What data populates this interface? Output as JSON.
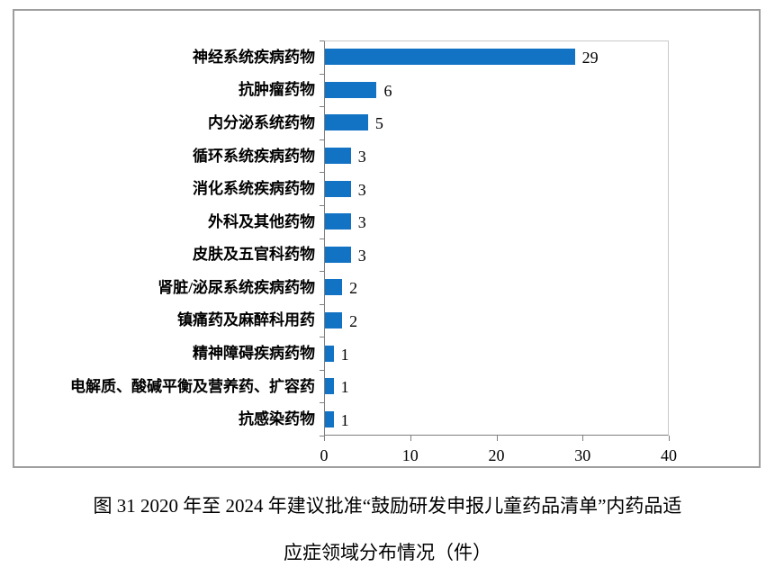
{
  "figure": {
    "caption_line1": "图 31  2020 年至 2024 年建议批准“鼓励研发申报儿童药品清单”内药品适",
    "caption_line2": "应症领域分布情况（件）"
  },
  "colors": {
    "bar": "#1273C5",
    "frame_border": "#9E9E9E",
    "axis": "#7F7F7F",
    "plot_border": "#C9C9C9",
    "text": "#000000"
  },
  "chart_data": {
    "type": "bar",
    "orientation": "horizontal",
    "title": "",
    "xlabel": "",
    "ylabel": "",
    "categories": [
      "神经系统疾病药物",
      "抗肿瘤药物",
      "内分泌系统药物",
      "循环系统疾病药物",
      "消化系统疾病药物",
      "外科及其他药物",
      "皮肤及五官科药物",
      "肾脏/泌尿系统疾病药物",
      "镇痛药及麻醉科用药",
      "精神障碍疾病药物",
      "电解质、酸碱平衡及营养药、扩容药",
      "抗感染药物"
    ],
    "values": [
      29,
      6,
      5,
      3,
      3,
      3,
      3,
      2,
      2,
      1,
      1,
      1
    ],
    "value_labels_shown": true,
    "x_ticks": [
      0,
      10,
      20,
      30,
      40
    ],
    "xlim": [
      0,
      40
    ],
    "grid": false,
    "legend": false
  }
}
